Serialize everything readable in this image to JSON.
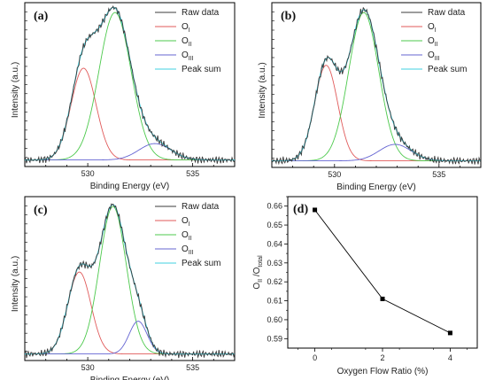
{
  "chart_data": [
    {
      "type": "line",
      "panel_label": "(a)",
      "xlabel": "Binding Energy (eV)",
      "ylabel": "Intensity (a.u.)",
      "xlim": [
        527,
        537
      ],
      "x_ticks": [
        530,
        535
      ],
      "baseline": 0.04,
      "legend_position": "top-right",
      "legend": [
        {
          "key": "raw",
          "base": "Raw data",
          "sub": "",
          "color": "#3b3b3b"
        },
        {
          "key": "o1",
          "base": "O",
          "sub": "I",
          "color": "#e05a5a"
        },
        {
          "key": "o2",
          "base": "O",
          "sub": "II",
          "color": "#4cc94c"
        },
        {
          "key": "o3",
          "base": "O",
          "sub": "III",
          "color": "#6464d2"
        },
        {
          "key": "sum",
          "base": "Peak sum",
          "sub": "",
          "color": "#40d0e0"
        }
      ],
      "peaks": {
        "o1": {
          "center": 529.8,
          "height": 0.56,
          "fwhm": 1.4
        },
        "o2": {
          "center": 531.3,
          "height": 0.9,
          "fwhm": 1.8
        },
        "o3": {
          "center": 533.2,
          "height": 0.1,
          "fwhm": 1.8
        }
      }
    },
    {
      "type": "line",
      "panel_label": "(b)",
      "xlabel": "Binding Energy (eV)",
      "ylabel": "Intensity (a.u.)",
      "xlim": [
        527,
        537
      ],
      "x_ticks": [
        530,
        535
      ],
      "baseline": 0.04,
      "legend_position": "top-right",
      "legend": [
        {
          "key": "raw",
          "base": "Raw data",
          "sub": "",
          "color": "#3b3b3b"
        },
        {
          "key": "o1",
          "base": "O",
          "sub": "I",
          "color": "#e05a5a"
        },
        {
          "key": "o2",
          "base": "O",
          "sub": "II",
          "color": "#4cc94c"
        },
        {
          "key": "o3",
          "base": "O",
          "sub": "III",
          "color": "#6464d2"
        },
        {
          "key": "sum",
          "base": "Peak sum",
          "sub": "",
          "color": "#40d0e0"
        }
      ],
      "peaks": {
        "o1": {
          "center": 529.6,
          "height": 0.58,
          "fwhm": 1.3
        },
        "o2": {
          "center": 531.4,
          "height": 0.9,
          "fwhm": 1.7
        },
        "o3": {
          "center": 532.9,
          "height": 0.1,
          "fwhm": 1.8
        }
      }
    },
    {
      "type": "line",
      "panel_label": "(c)",
      "xlabel": "Binding Energy (eV)",
      "ylabel": "Intensity (a.u.)",
      "xlim": [
        527,
        537
      ],
      "x_ticks": [
        530,
        535
      ],
      "baseline": 0.04,
      "legend_position": "top-right",
      "legend": [
        {
          "key": "raw",
          "base": "Raw data",
          "sub": "",
          "color": "#3b3b3b"
        },
        {
          "key": "o1",
          "base": "O",
          "sub": "I",
          "color": "#e05a5a"
        },
        {
          "key": "o2",
          "base": "O",
          "sub": "II",
          "color": "#4cc94c"
        },
        {
          "key": "o3",
          "base": "O",
          "sub": "III",
          "color": "#6464d2"
        },
        {
          "key": "sum",
          "base": "Peak sum",
          "sub": "",
          "color": "#40d0e0"
        }
      ],
      "peaks": {
        "o1": {
          "center": 529.6,
          "height": 0.5,
          "fwhm": 1.3
        },
        "o2": {
          "center": 531.2,
          "height": 0.9,
          "fwhm": 1.5
        },
        "o3": {
          "center": 532.4,
          "height": 0.2,
          "fwhm": 1.0
        }
      }
    },
    {
      "type": "scatter",
      "panel_label": "(d)",
      "xlabel": "Oxygen Flow Ratio (%)",
      "ylabel": "O",
      "ylabel_sub_1": "II",
      "ylabel_mid": " /O",
      "ylabel_sub_2": "total",
      "x": [
        0,
        2,
        4
      ],
      "y": [
        0.658,
        0.611,
        0.593
      ],
      "xlim": [
        -0.8,
        4.8
      ],
      "ylim": [
        0.585,
        0.665
      ],
      "x_ticks": [
        "0",
        "2",
        "4"
      ],
      "y_ticks": [
        "0.59",
        "0.60",
        "0.61",
        "0.62",
        "0.63",
        "0.64",
        "0.65",
        "0.66"
      ],
      "color": "#000000"
    }
  ]
}
